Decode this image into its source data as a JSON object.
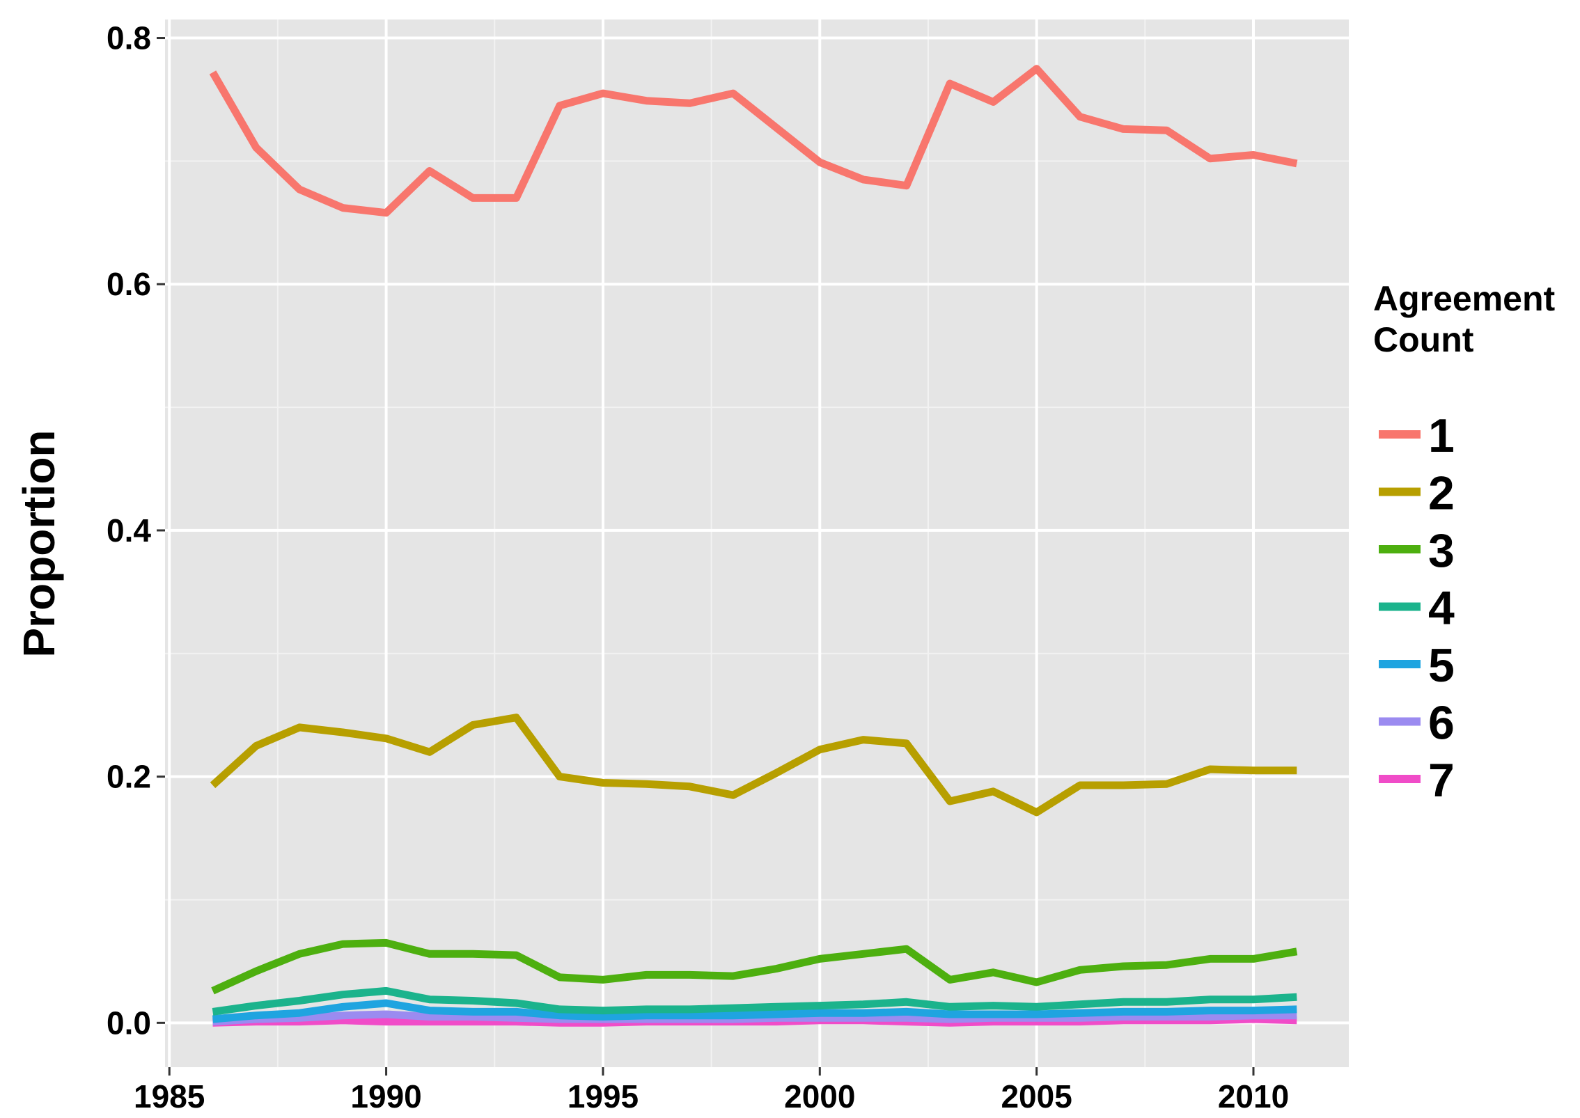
{
  "chart_data": {
    "type": "line",
    "ylabel": "Proportion",
    "xlabel": "",
    "title": "",
    "xlim": [
      1984.9,
      2012.2
    ],
    "ylim": [
      -0.036,
      0.815
    ],
    "x_ticks": [
      1985,
      1990,
      1995,
      2000,
      2005,
      2010
    ],
    "y_ticks": [
      0.0,
      0.2,
      0.4,
      0.6,
      0.8
    ],
    "y_tick_labels": [
      "0.0",
      "0.2",
      "0.4",
      "0.6",
      "0.8"
    ],
    "grid": true,
    "legend": {
      "title_line1": "Agreement",
      "title_line2": "Count",
      "placement": "right"
    },
    "x": [
      1986,
      1987,
      1988,
      1989,
      1990,
      1991,
      1992,
      1993,
      1994,
      1995,
      1996,
      1997,
      1998,
      1999,
      2000,
      2001,
      2002,
      2003,
      2004,
      2005,
      2006,
      2007,
      2008,
      2009,
      2010,
      2011
    ],
    "series": [
      {
        "name": "1",
        "color": "#F8766D",
        "values": [
          0.772,
          0.711,
          0.677,
          0.662,
          0.658,
          0.692,
          0.67,
          0.67,
          0.745,
          0.755,
          0.749,
          0.747,
          0.755,
          0.727,
          0.699,
          0.685,
          0.68,
          0.763,
          0.748,
          0.775,
          0.736,
          0.726,
          0.725,
          0.702,
          0.705,
          0.698
        ]
      },
      {
        "name": "2",
        "color": "#B79F00",
        "values": [
          0.193,
          0.225,
          0.24,
          0.236,
          0.231,
          0.22,
          0.242,
          0.248,
          0.2,
          0.195,
          0.194,
          0.192,
          0.185,
          0.203,
          0.222,
          0.23,
          0.227,
          0.18,
          0.188,
          0.171,
          0.193,
          0.193,
          0.194,
          0.206,
          0.205,
          0.205
        ]
      },
      {
        "name": "3",
        "color": "#4DAF0F",
        "values": [
          0.026,
          0.042,
          0.056,
          0.064,
          0.065,
          0.056,
          0.056,
          0.055,
          0.037,
          0.035,
          0.039,
          0.039,
          0.038,
          0.044,
          0.052,
          0.056,
          0.06,
          0.035,
          0.041,
          0.033,
          0.043,
          0.046,
          0.047,
          0.052,
          0.052,
          0.058
        ]
      },
      {
        "name": "4",
        "color": "#1BB38C",
        "values": [
          0.009,
          0.014,
          0.018,
          0.023,
          0.026,
          0.019,
          0.018,
          0.016,
          0.011,
          0.01,
          0.011,
          0.011,
          0.012,
          0.013,
          0.014,
          0.015,
          0.017,
          0.013,
          0.014,
          0.013,
          0.015,
          0.017,
          0.017,
          0.019,
          0.019,
          0.021
        ]
      },
      {
        "name": "5",
        "color": "#1FA4E0",
        "values": [
          0.003,
          0.006,
          0.008,
          0.013,
          0.016,
          0.01,
          0.009,
          0.009,
          0.006,
          0.005,
          0.006,
          0.006,
          0.006,
          0.007,
          0.008,
          0.008,
          0.009,
          0.007,
          0.007,
          0.007,
          0.008,
          0.009,
          0.009,
          0.01,
          0.01,
          0.011
        ]
      },
      {
        "name": "6",
        "color": "#9B8BF0",
        "values": [
          0.001,
          0.003,
          0.004,
          0.006,
          0.007,
          0.005,
          0.005,
          0.004,
          0.003,
          0.003,
          0.003,
          0.003,
          0.003,
          0.004,
          0.004,
          0.004,
          0.004,
          0.003,
          0.004,
          0.004,
          0.004,
          0.005,
          0.005,
          0.005,
          0.006,
          0.006
        ]
      },
      {
        "name": "7",
        "color": "#F04CC8",
        "values": [
          0.0,
          0.001,
          0.001,
          0.002,
          0.001,
          0.001,
          0.001,
          0.001,
          0.0,
          0.0,
          0.001,
          0.001,
          0.001,
          0.001,
          0.002,
          0.002,
          0.001,
          0.0,
          0.001,
          0.001,
          0.001,
          0.002,
          0.002,
          0.002,
          0.003,
          0.002
        ]
      }
    ]
  }
}
